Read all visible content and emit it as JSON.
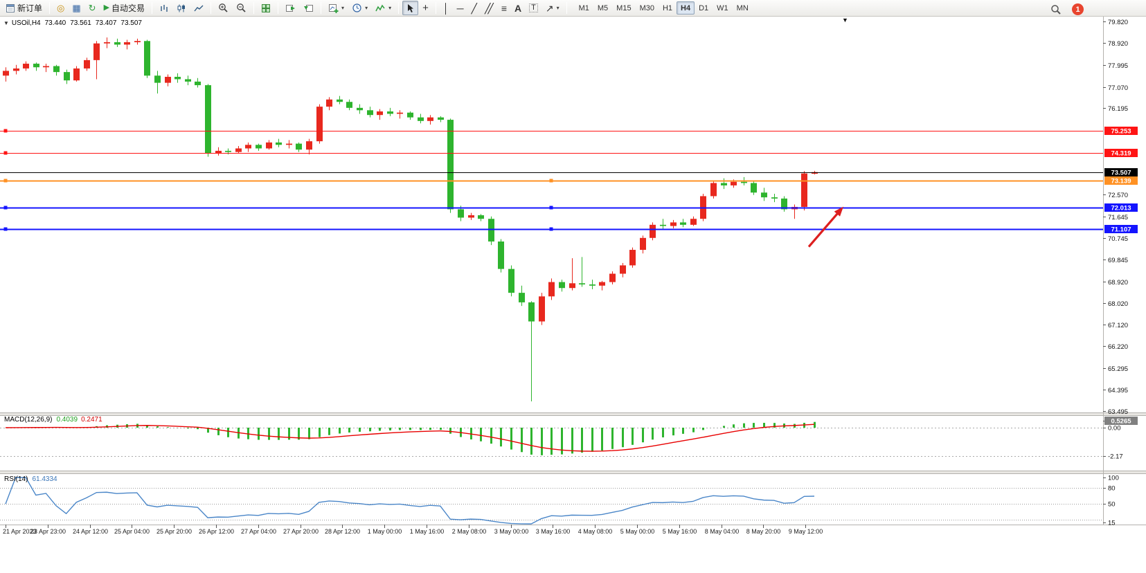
{
  "toolbar": {
    "new_order": "新订单",
    "autotrading": "自动交易",
    "timeframes": [
      "M1",
      "M5",
      "M15",
      "M30",
      "H1",
      "H4",
      "D1",
      "W1",
      "MN"
    ],
    "active_timeframe": "H4",
    "notification_count": "1"
  },
  "icons": {
    "coins": "◎",
    "window": "▦",
    "refresh": "↻",
    "play": "▶",
    "crosshair": "+",
    "vline": "│",
    "hline": "─",
    "trendline": "╱",
    "channel": "╱╱",
    "fibonacci": "≡",
    "text_tool": "A",
    "label_tool": "T",
    "shapes": "↗",
    "caret": "▾",
    "collapse": "▼",
    "shift_marker": "▼"
  },
  "chart_data": [
    {
      "type": "candlestick",
      "symbol_title": "USOil,H4",
      "ohlc_label": {
        "open": "73.440",
        "high": "73.561",
        "low": "73.407",
        "close": "73.507"
      },
      "up_color": "#e8281e",
      "down_color": "#2eb42e",
      "price_anchor_top": 79.82,
      "ylim": [
        63.3,
        79.95
      ],
      "y_ticks": [
        79.82,
        78.92,
        77.995,
        77.07,
        76.195,
        72.57,
        71.645,
        70.745,
        69.845,
        68.92,
        68.02,
        67.12,
        66.22,
        65.295,
        64.395,
        63.495
      ],
      "x_labels": [
        "21 Apr 2023",
        "23 Apr 23:00",
        "24 Apr 12:00",
        "25 Apr 04:00",
        "25 Apr 20:00",
        "26 Apr 12:00",
        "27 Apr 04:00",
        "27 Apr 20:00",
        "28 Apr 12:00",
        "1 May 00:00",
        "1 May 16:00",
        "2 May 08:00",
        "3 May 00:00",
        "3 May 16:00",
        "4 May 08:00",
        "5 May 00:00",
        "5 May 16:00",
        "8 May 04:00",
        "8 May 20:00",
        "9 May 12:00"
      ],
      "hlines": [
        {
          "price": 75.253,
          "label": "75.253",
          "color": "#ff1414",
          "width": 1,
          "center_handle": false
        },
        {
          "price": 74.319,
          "label": "74.319",
          "color": "#ff1414",
          "width": 1,
          "center_handle": false
        },
        {
          "price": 73.139,
          "label": "73.139",
          "color": "#ff9124",
          "width": 2,
          "center_handle": true
        },
        {
          "price": 72.013,
          "label": "72.013",
          "color": "#1414ff",
          "width": 2,
          "center_handle": true
        },
        {
          "price": 71.107,
          "label": "71.107",
          "color": "#1414ff",
          "width": 2,
          "center_handle": true
        }
      ],
      "current_price": {
        "value": 73.507,
        "label": "73.507",
        "color": "#000000"
      },
      "arrow": {
        "x_from": 1168,
        "price_from": 70.38,
        "x_to": 1218,
        "price_to": 72.06,
        "color": "#dd1f1f"
      },
      "candles": [
        [
          77.55,
          77.9,
          77.3,
          77.75
        ],
        [
          77.75,
          78.0,
          77.6,
          77.85
        ],
        [
          77.85,
          78.15,
          77.75,
          78.05
        ],
        [
          78.05,
          78.1,
          77.75,
          77.9
        ],
        [
          77.9,
          78.05,
          77.7,
          77.95
        ],
        [
          77.95,
          78.0,
          77.55,
          77.7
        ],
        [
          77.7,
          77.8,
          77.2,
          77.35
        ],
        [
          77.35,
          77.95,
          77.3,
          77.85
        ],
        [
          77.85,
          78.3,
          77.75,
          78.2
        ],
        [
          78.2,
          79.0,
          77.4,
          78.9
        ],
        [
          78.9,
          79.15,
          78.7,
          78.95
        ],
        [
          78.95,
          79.1,
          78.75,
          78.85
        ],
        [
          78.85,
          79.05,
          78.65,
          78.95
        ],
        [
          78.95,
          79.1,
          78.85,
          79.0
        ],
        [
          79.0,
          79.05,
          77.45,
          77.55
        ],
        [
          77.55,
          77.75,
          76.8,
          77.25
        ],
        [
          77.25,
          77.6,
          77.1,
          77.5
        ],
        [
          77.5,
          77.65,
          77.25,
          77.4
        ],
        [
          77.4,
          77.55,
          77.15,
          77.3
        ],
        [
          77.3,
          77.45,
          77.05,
          77.15
        ],
        [
          77.15,
          77.2,
          74.15,
          74.3
        ],
        [
          74.3,
          74.55,
          74.2,
          74.4
        ],
        [
          74.4,
          74.5,
          74.25,
          74.35
        ],
        [
          74.35,
          74.6,
          74.3,
          74.5
        ],
        [
          74.5,
          74.75,
          74.35,
          74.65
        ],
        [
          74.65,
          74.7,
          74.4,
          74.5
        ],
        [
          74.5,
          74.85,
          74.45,
          74.75
        ],
        [
          74.75,
          74.9,
          74.55,
          74.65
        ],
        [
          74.65,
          74.85,
          74.5,
          74.7
        ],
        [
          74.7,
          74.75,
          74.35,
          74.45
        ],
        [
          74.45,
          74.9,
          74.25,
          74.8
        ],
        [
          74.8,
          76.35,
          74.7,
          76.25
        ],
        [
          76.25,
          76.65,
          76.1,
          76.55
        ],
        [
          76.55,
          76.7,
          76.35,
          76.45
        ],
        [
          76.45,
          76.55,
          76.1,
          76.2
        ],
        [
          76.2,
          76.35,
          75.95,
          76.1
        ],
        [
          76.1,
          76.25,
          75.8,
          75.9
        ],
        [
          75.9,
          76.15,
          75.7,
          76.05
        ],
        [
          76.05,
          76.2,
          75.85,
          75.95
        ],
        [
          75.95,
          76.1,
          75.75,
          76.0
        ],
        [
          76.0,
          76.05,
          75.7,
          75.8
        ],
        [
          75.8,
          75.95,
          75.55,
          75.65
        ],
        [
          75.65,
          75.9,
          75.5,
          75.8
        ],
        [
          75.8,
          75.85,
          75.6,
          75.7
        ],
        [
          75.7,
          75.75,
          71.8,
          71.95
        ],
        [
          71.95,
          72.1,
          71.45,
          71.6
        ],
        [
          71.6,
          71.8,
          71.5,
          71.7
        ],
        [
          71.7,
          71.75,
          71.45,
          71.55
        ],
        [
          71.55,
          71.65,
          70.45,
          70.6
        ],
        [
          70.6,
          70.7,
          69.3,
          69.45
        ],
        [
          69.45,
          69.6,
          68.3,
          68.45
        ],
        [
          68.45,
          68.75,
          67.9,
          68.05
        ],
        [
          68.05,
          68.1,
          63.9,
          67.25
        ],
        [
          67.25,
          68.45,
          67.1,
          68.3
        ],
        [
          68.3,
          69.05,
          68.15,
          68.9
        ],
        [
          68.9,
          69.0,
          68.5,
          68.65
        ],
        [
          68.65,
          69.9,
          68.55,
          68.85
        ],
        [
          68.85,
          69.95,
          68.7,
          68.8
        ],
        [
          68.8,
          69.0,
          68.6,
          68.75
        ],
        [
          68.75,
          68.95,
          68.55,
          68.9
        ],
        [
          68.9,
          69.35,
          68.8,
          69.25
        ],
        [
          69.25,
          69.7,
          69.1,
          69.6
        ],
        [
          69.6,
          70.35,
          69.5,
          70.25
        ],
        [
          70.25,
          70.85,
          70.1,
          70.75
        ],
        [
          70.75,
          71.4,
          70.65,
          71.3
        ],
        [
          71.3,
          71.55,
          71.1,
          71.25
        ],
        [
          71.25,
          71.5,
          71.15,
          71.4
        ],
        [
          71.4,
          71.55,
          71.2,
          71.3
        ],
        [
          71.3,
          71.65,
          71.25,
          71.55
        ],
        [
          71.55,
          72.6,
          71.45,
          72.5
        ],
        [
          72.5,
          73.15,
          72.4,
          73.05
        ],
        [
          73.05,
          73.25,
          72.8,
          72.95
        ],
        [
          72.95,
          73.2,
          72.85,
          73.1
        ],
        [
          73.1,
          73.3,
          72.95,
          73.05
        ],
        [
          73.05,
          73.15,
          72.55,
          72.65
        ],
        [
          72.65,
          72.85,
          72.3,
          72.45
        ],
        [
          72.45,
          72.6,
          72.25,
          72.4
        ],
        [
          72.4,
          72.5,
          71.85,
          71.95
        ],
        [
          71.95,
          72.15,
          71.55,
          72.05
        ],
        [
          72.05,
          73.55,
          71.9,
          73.45
        ],
        [
          73.44,
          73.561,
          73.407,
          73.507
        ]
      ]
    },
    {
      "type": "macd-histogram",
      "name": "MACD(12,26,9)",
      "value_main": "0.4039",
      "value_signal": "0.2471",
      "params": {
        "fast": 12,
        "slow": 26,
        "signal": 9
      },
      "hist_color": "#2eb42e",
      "signal_color": "#e80000",
      "y_ticks": [
        {
          "v": 0.5265,
          "label": "0.5265",
          "box": true
        },
        {
          "v": 0,
          "label": "0.00",
          "box": false
        },
        {
          "v": -2.17,
          "label": "-2.17",
          "box": false
        }
      ]
    },
    {
      "type": "rsi-line",
      "name": "RSI(14)",
      "value": "61.4334",
      "period": 14,
      "line_color": "#4a86c8",
      "levels": [
        80,
        50,
        20
      ],
      "y_ticks": [
        {
          "v": 100,
          "label": "100"
        },
        {
          "v": 80,
          "label": "80"
        },
        {
          "v": 50,
          "label": "50"
        },
        {
          "v": 15,
          "label": "15"
        }
      ]
    }
  ]
}
